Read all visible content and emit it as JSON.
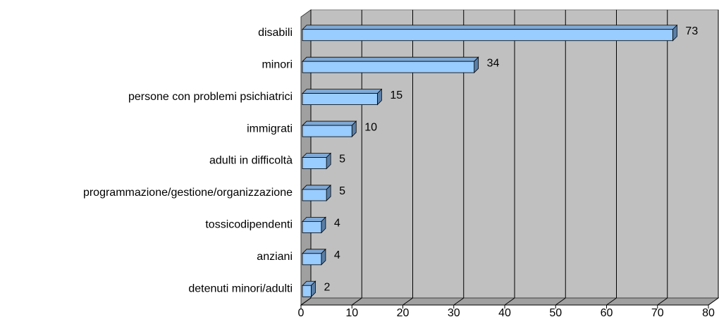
{
  "chart_data": {
    "type": "bar",
    "orientation": "horizontal",
    "categories": [
      "disabili",
      "minori",
      "persone con problemi psichiatrici",
      "immigrati",
      "adulti in difficoltà",
      "programmazione/gestione/organizzazione",
      "tossicodipendenti",
      "anziani",
      "detenuti minori/adulti"
    ],
    "values": [
      73,
      34,
      15,
      10,
      5,
      5,
      4,
      4,
      2
    ],
    "color": "#99ccff",
    "xlim": [
      0,
      80
    ],
    "xticks": [
      0,
      10,
      20,
      30,
      40,
      50,
      60,
      70,
      80
    ],
    "grid": true
  }
}
